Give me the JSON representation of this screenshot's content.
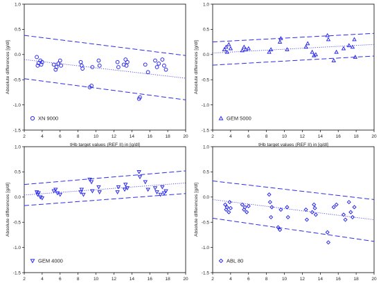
{
  "chart_data": [
    {
      "type": "scatter",
      "legend": "XN 9000",
      "marker": "circle",
      "xlabel": "tHb target values (REF II) in [g/dl]",
      "ylabel": "Absolute differences [g/dl]",
      "xlim": [
        2,
        20
      ],
      "ylim": [
        -1.5,
        1.0
      ],
      "xticks": [
        "2",
        "4",
        "6",
        "8",
        "10",
        "12",
        "14",
        "16",
        "18",
        "20"
      ],
      "yticks": [
        "-1.5",
        "-1.0",
        "-0.5",
        "0.0",
        "0.5",
        "1.0"
      ],
      "legend_position": "bottom-left",
      "color": "#2a2af0",
      "regression": {
        "x": [
          2,
          20
        ],
        "y": [
          -0.1,
          -0.47
        ]
      },
      "limits_upper": {
        "x": [
          2,
          20
        ],
        "y": [
          0.38,
          -0.02
        ]
      },
      "limits_lower": {
        "x": [
          2,
          20
        ],
        "y": [
          -0.48,
          -0.9
        ]
      },
      "points": [
        {
          "x": 3.4,
          "y": -0.05
        },
        {
          "x": 3.5,
          "y": -0.22
        },
        {
          "x": 3.6,
          "y": -0.17
        },
        {
          "x": 3.8,
          "y": -0.12
        },
        {
          "x": 3.9,
          "y": -0.2
        },
        {
          "x": 4.0,
          "y": -0.15
        },
        {
          "x": 5.3,
          "y": -0.2
        },
        {
          "x": 5.5,
          "y": -0.3
        },
        {
          "x": 5.6,
          "y": -0.25
        },
        {
          "x": 5.8,
          "y": -0.18
        },
        {
          "x": 6.0,
          "y": -0.12
        },
        {
          "x": 6.1,
          "y": -0.22
        },
        {
          "x": 8.3,
          "y": -0.15
        },
        {
          "x": 8.4,
          "y": -0.22
        },
        {
          "x": 8.5,
          "y": -0.28
        },
        {
          "x": 9.3,
          "y": -0.65
        },
        {
          "x": 9.5,
          "y": -0.62
        },
        {
          "x": 9.6,
          "y": -0.25
        },
        {
          "x": 10.3,
          "y": -0.12
        },
        {
          "x": 10.4,
          "y": -0.22
        },
        {
          "x": 12.4,
          "y": -0.15
        },
        {
          "x": 12.5,
          "y": -0.25
        },
        {
          "x": 13.1,
          "y": -0.2
        },
        {
          "x": 13.3,
          "y": -0.1
        },
        {
          "x": 13.4,
          "y": -0.22
        },
        {
          "x": 13.5,
          "y": -0.15
        },
        {
          "x": 14.8,
          "y": -0.88
        },
        {
          "x": 14.9,
          "y": -0.85
        },
        {
          "x": 15.5,
          "y": -0.2
        },
        {
          "x": 15.8,
          "y": -0.35
        },
        {
          "x": 16.6,
          "y": -0.12
        },
        {
          "x": 16.8,
          "y": -0.25
        },
        {
          "x": 17.0,
          "y": -0.18
        },
        {
          "x": 17.4,
          "y": -0.1
        },
        {
          "x": 17.6,
          "y": -0.22
        },
        {
          "x": 17.8,
          "y": -0.3
        }
      ]
    },
    {
      "type": "scatter",
      "legend": "GEM 5000",
      "marker": "triangle-up",
      "xlabel": "tHb target values (REF II) in [g/dl]",
      "ylabel": "Absolute differences [g/dl]",
      "xlim": [
        2,
        20
      ],
      "ylim": [
        -1.5,
        1.0
      ],
      "xticks": [
        "2",
        "4",
        "6",
        "8",
        "10",
        "12",
        "14",
        "16",
        "18",
        "20"
      ],
      "yticks": [
        "-1.5",
        "-1.0",
        "-0.5",
        "0.0",
        "0.5",
        "1.0"
      ],
      "legend_position": "bottom-left",
      "color": "#2a2af0",
      "regression": {
        "x": [
          2,
          20
        ],
        "y": [
          0.03,
          0.2
        ]
      },
      "limits_upper": {
        "x": [
          2,
          20
        ],
        "y": [
          0.25,
          0.42
        ]
      },
      "limits_lower": {
        "x": [
          2,
          20
        ],
        "y": [
          -0.21,
          -0.03
        ]
      },
      "points": [
        {
          "x": 3.3,
          "y": 0.1
        },
        {
          "x": 3.5,
          "y": 0.15
        },
        {
          "x": 3.6,
          "y": 0.05
        },
        {
          "x": 3.8,
          "y": 0.2
        },
        {
          "x": 4.0,
          "y": 0.12
        },
        {
          "x": 5.3,
          "y": 0.08
        },
        {
          "x": 5.5,
          "y": 0.15
        },
        {
          "x": 5.7,
          "y": 0.1
        },
        {
          "x": 6.0,
          "y": 0.12
        },
        {
          "x": 8.3,
          "y": 0.05
        },
        {
          "x": 8.5,
          "y": 0.1
        },
        {
          "x": 9.5,
          "y": 0.25
        },
        {
          "x": 9.6,
          "y": 0.32
        },
        {
          "x": 10.3,
          "y": 0.1
        },
        {
          "x": 12.4,
          "y": 0.15
        },
        {
          "x": 12.6,
          "y": 0.22
        },
        {
          "x": 13.1,
          "y": 0.05
        },
        {
          "x": 13.3,
          "y": -0.02
        },
        {
          "x": 13.5,
          "y": 0.0
        },
        {
          "x": 14.8,
          "y": 0.38
        },
        {
          "x": 14.9,
          "y": 0.3
        },
        {
          "x": 15.5,
          "y": -0.12
        },
        {
          "x": 15.8,
          "y": 0.05
        },
        {
          "x": 16.6,
          "y": 0.12
        },
        {
          "x": 17.2,
          "y": 0.18
        },
        {
          "x": 17.6,
          "y": 0.15
        },
        {
          "x": 17.8,
          "y": 0.3
        },
        {
          "x": 17.9,
          "y": -0.05
        }
      ]
    },
    {
      "type": "scatter",
      "legend": "GEM 4000",
      "marker": "triangle-down",
      "xlabel": "tHb target values (REF II) in [g/dl]",
      "ylabel": "Absolute differences [g/dl]",
      "xlim": [
        2,
        20
      ],
      "ylim": [
        -1.5,
        1.0
      ],
      "xticks": [
        "2",
        "4",
        "6",
        "8",
        "10",
        "12",
        "14",
        "16",
        "18",
        "20"
      ],
      "yticks": [
        "-1.5",
        "-1.0",
        "-0.5",
        "0.0",
        "0.5",
        "1.0"
      ],
      "legend_position": "bottom-left",
      "color": "#2a2af0",
      "regression": {
        "x": [
          2,
          20
        ],
        "y": [
          0.04,
          0.28
        ]
      },
      "limits_upper": {
        "x": [
          2,
          20
        ],
        "y": [
          0.25,
          0.52
        ]
      },
      "limits_lower": {
        "x": [
          2,
          20
        ],
        "y": [
          -0.17,
          0.07
        ]
      },
      "points": [
        {
          "x": 3.4,
          "y": 0.1
        },
        {
          "x": 3.5,
          "y": 0.05
        },
        {
          "x": 3.6,
          "y": 0.08
        },
        {
          "x": 3.8,
          "y": 0.0
        },
        {
          "x": 4.0,
          "y": -0.02
        },
        {
          "x": 5.3,
          "y": 0.12
        },
        {
          "x": 5.5,
          "y": 0.15
        },
        {
          "x": 5.7,
          "y": 0.08
        },
        {
          "x": 6.0,
          "y": 0.05
        },
        {
          "x": 8.3,
          "y": 0.1
        },
        {
          "x": 8.4,
          "y": 0.15
        },
        {
          "x": 8.6,
          "y": 0.05
        },
        {
          "x": 9.3,
          "y": 0.35
        },
        {
          "x": 9.5,
          "y": 0.3
        },
        {
          "x": 9.6,
          "y": 0.12
        },
        {
          "x": 10.3,
          "y": 0.2
        },
        {
          "x": 10.4,
          "y": 0.1
        },
        {
          "x": 12.4,
          "y": 0.1
        },
        {
          "x": 12.5,
          "y": 0.2
        },
        {
          "x": 13.2,
          "y": 0.15
        },
        {
          "x": 13.3,
          "y": 0.25
        },
        {
          "x": 13.5,
          "y": 0.18
        },
        {
          "x": 14.8,
          "y": 0.5
        },
        {
          "x": 14.9,
          "y": 0.4
        },
        {
          "x": 15.5,
          "y": 0.3
        },
        {
          "x": 15.8,
          "y": 0.15
        },
        {
          "x": 16.6,
          "y": 0.18
        },
        {
          "x": 16.8,
          "y": 0.1
        },
        {
          "x": 17.2,
          "y": 0.05
        },
        {
          "x": 17.4,
          "y": 0.2
        },
        {
          "x": 17.6,
          "y": 0.08
        },
        {
          "x": 17.8,
          "y": 0.12
        }
      ]
    },
    {
      "type": "scatter",
      "legend": "ABL 80",
      "marker": "diamond",
      "xlabel": "tHb target values (REF II) in [g/dl]",
      "ylabel": "Absolute differences [g/dl]",
      "xlim": [
        2,
        20
      ],
      "ylim": [
        -1.5,
        1.0
      ],
      "xticks": [
        "2",
        "4",
        "6",
        "8",
        "10",
        "12",
        "14",
        "16",
        "18",
        "20"
      ],
      "yticks": [
        "-1.5",
        "-1.0",
        "-0.5",
        "0.0",
        "0.5",
        "1.0"
      ],
      "legend_position": "bottom-left",
      "color": "#2a2af0",
      "regression": {
        "x": [
          2,
          20
        ],
        "y": [
          -0.05,
          -0.45
        ]
      },
      "limits_upper": {
        "x": [
          2,
          20
        ],
        "y": [
          0.32,
          -0.05
        ]
      },
      "limits_lower": {
        "x": [
          2,
          20
        ],
        "y": [
          -0.42,
          -0.88
        ]
      },
      "points": [
        {
          "x": 3.4,
          "y": -0.15
        },
        {
          "x": 3.5,
          "y": -0.25
        },
        {
          "x": 3.6,
          "y": -0.2
        },
        {
          "x": 3.8,
          "y": -0.3
        },
        {
          "x": 3.9,
          "y": -0.1
        },
        {
          "x": 4.0,
          "y": -0.22
        },
        {
          "x": 5.3,
          "y": -0.15
        },
        {
          "x": 5.5,
          "y": -0.25
        },
        {
          "x": 5.6,
          "y": -0.2
        },
        {
          "x": 5.8,
          "y": -0.3
        },
        {
          "x": 6.0,
          "y": -0.18
        },
        {
          "x": 8.3,
          "y": 0.05
        },
        {
          "x": 8.4,
          "y": -0.1
        },
        {
          "x": 8.5,
          "y": -0.4
        },
        {
          "x": 8.6,
          "y": -0.2
        },
        {
          "x": 9.3,
          "y": -0.6
        },
        {
          "x": 9.5,
          "y": -0.65
        },
        {
          "x": 9.6,
          "y": -0.25
        },
        {
          "x": 10.3,
          "y": -0.2
        },
        {
          "x": 10.4,
          "y": -0.4
        },
        {
          "x": 12.4,
          "y": -0.25
        },
        {
          "x": 12.5,
          "y": -0.45
        },
        {
          "x": 13.1,
          "y": -0.3
        },
        {
          "x": 13.3,
          "y": -0.15
        },
        {
          "x": 13.4,
          "y": -0.22
        },
        {
          "x": 13.5,
          "y": -0.35
        },
        {
          "x": 14.8,
          "y": -0.7
        },
        {
          "x": 14.9,
          "y": -0.9
        },
        {
          "x": 15.5,
          "y": -0.2
        },
        {
          "x": 15.8,
          "y": -0.15
        },
        {
          "x": 16.6,
          "y": -0.35
        },
        {
          "x": 16.8,
          "y": -0.45
        },
        {
          "x": 17.2,
          "y": -0.1
        },
        {
          "x": 17.4,
          "y": -0.3
        },
        {
          "x": 17.6,
          "y": -0.4
        },
        {
          "x": 17.8,
          "y": -0.2
        }
      ]
    }
  ]
}
